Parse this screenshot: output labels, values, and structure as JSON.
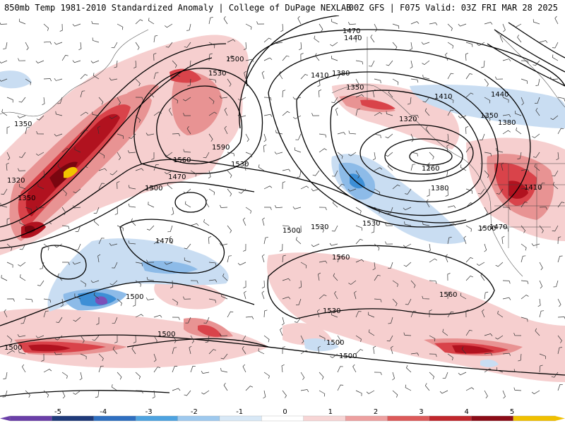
{
  "header": {
    "left_title": "850mb Temp 1981-2010 Standardized Anomaly | College of DuPage NEXLAB",
    "right_title": "00Z GFS | F075 Valid: 03Z FRI MAR 28 2025"
  },
  "contour_labels": [
    "1470",
    "1440",
    "1410",
    "1380",
    "1350",
    "1500",
    "1530",
    "1590",
    "1560",
    "1530",
    "1320",
    "1260",
    "1350",
    "1380",
    "1410",
    "1440",
    "1470",
    "1500",
    "1350",
    "1320",
    "1350",
    "1380",
    "1470",
    "1500",
    "1470",
    "1530",
    "1500",
    "1530",
    "1560",
    "1560",
    "1500",
    "1500",
    "1530",
    "1500",
    "1500",
    "1410",
    "1500"
  ],
  "colorbar": {
    "tick_labels": [
      "-5",
      "-4",
      "-3",
      "-2",
      "-1",
      "0",
      "1",
      "2",
      "3",
      "4",
      "5"
    ],
    "colors": [
      "#6a3fa8",
      "#1f3a7a",
      "#2f6fc0",
      "#4ea3e0",
      "#9ec9ee",
      "#d8e8f6",
      "#ffffff",
      "#f7d5d5",
      "#eda0a0",
      "#dc5a5a",
      "#c0272d",
      "#8b0d18",
      "#f0c000"
    ]
  },
  "anomaly_colors": {
    "light_red": "#f6cfcf",
    "mid_red": "#e89393",
    "red": "#d9434a",
    "dark_red": "#b1121f",
    "darkest_red": "#7a0610",
    "yellow": "#f2c400",
    "light_blue": "#c9ddf2",
    "mid_blue": "#8dbbe8",
    "blue": "#3d8fd6",
    "purple": "#7b4fb8"
  }
}
